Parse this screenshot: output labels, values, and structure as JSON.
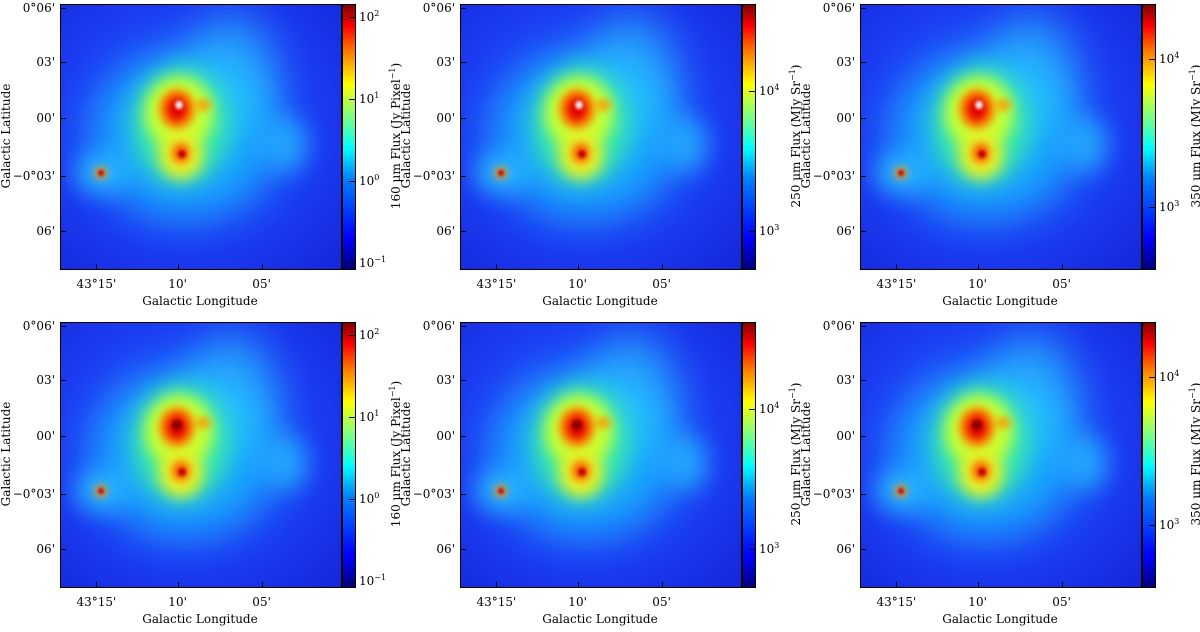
{
  "figure": {
    "rows": 2,
    "panels": [
      {
        "id": "p1",
        "band": "160 μm Flux (Jy Pixel",
        "band_exp": "−1",
        "band_close": ")",
        "cbar_ticks": [
          {
            "base": "10",
            "exp": "2",
            "frac": 0.95
          },
          {
            "base": "10",
            "exp": "1",
            "frac": 0.64
          },
          {
            "base": "10",
            "exp": "0",
            "frac": 0.33
          },
          {
            "base": "10",
            "exp": "−1",
            "frac": 0.02
          }
        ],
        "peak_white": true
      },
      {
        "id": "p2",
        "band": "250 μm Flux (MJy Sr",
        "band_exp": "−1",
        "band_close": ")",
        "cbar_ticks": [
          {
            "base": "10",
            "exp": "4",
            "frac": 0.67
          },
          {
            "base": "10",
            "exp": "3",
            "frac": 0.14
          }
        ],
        "peak_white": true
      },
      {
        "id": "p3",
        "band": "350 μm Flux (MJy Sr",
        "band_exp": "−1",
        "band_close": ")",
        "cbar_ticks": [
          {
            "base": "10",
            "exp": "4",
            "frac": 0.79
          },
          {
            "base": "10",
            "exp": "3",
            "frac": 0.23
          }
        ],
        "peak_white": true
      },
      {
        "id": "p4",
        "band": "160 μm Flux (Jy Pixel",
        "band_exp": "−1",
        "band_close": ")",
        "cbar_ticks": [
          {
            "base": "10",
            "exp": "2",
            "frac": 0.95
          },
          {
            "base": "10",
            "exp": "1",
            "frac": 0.64
          },
          {
            "base": "10",
            "exp": "0",
            "frac": 0.33
          },
          {
            "base": "10",
            "exp": "−1",
            "frac": 0.02
          }
        ],
        "peak_white": false
      },
      {
        "id": "p5",
        "band": "250 μm Flux (MJy Sr",
        "band_exp": "−1",
        "band_close": ")",
        "cbar_ticks": [
          {
            "base": "10",
            "exp": "4",
            "frac": 0.67
          },
          {
            "base": "10",
            "exp": "3",
            "frac": 0.14
          }
        ],
        "peak_white": false
      },
      {
        "id": "p6",
        "band": "350 μm Flux (MJy Sr",
        "band_exp": "−1",
        "band_close": ")",
        "cbar_ticks": [
          {
            "base": "10",
            "exp": "4",
            "frac": 0.79
          },
          {
            "base": "10",
            "exp": "3",
            "frac": 0.23
          }
        ],
        "peak_white": false
      }
    ],
    "axes": {
      "xlabel": "Galactic Longitude",
      "ylabel": "Galactic Latitude",
      "xticks": [
        {
          "label": "43°15'",
          "frac": 0.13
        },
        {
          "label": "10'",
          "frac": 0.42
        },
        {
          "label": "05'",
          "frac": 0.72
        }
      ],
      "yticks": [
        {
          "label": "0°06'",
          "frac": 0.985
        },
        {
          "label": "03'",
          "frac": 0.78
        },
        {
          "label": "00'",
          "frac": 0.57
        },
        {
          "label": "−0°03'",
          "frac": 0.35
        },
        {
          "label": "06'",
          "frac": 0.14
        }
      ]
    },
    "colormap": "jet",
    "colors": {
      "background": "#2a4dfa",
      "peak": "#8b0000",
      "saturated": "#ffffff"
    }
  }
}
